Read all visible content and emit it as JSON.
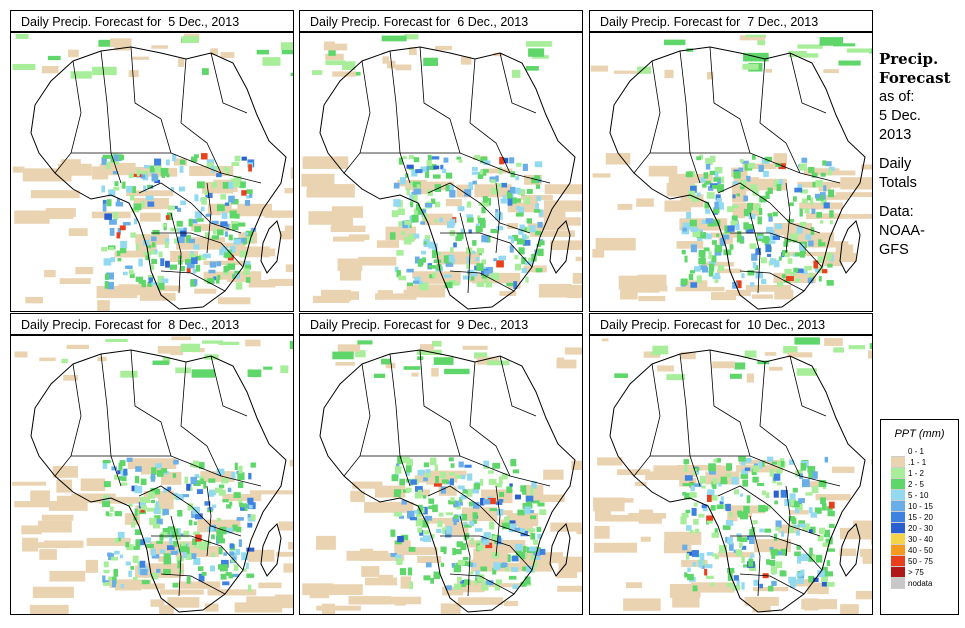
{
  "panels": [
    {
      "title": "Daily Precip. Forecast for  5 Dec., 2013"
    },
    {
      "title": "Daily Precip. Forecast for  6 Dec., 2013"
    },
    {
      "title": "Daily Precip. Forecast for  7 Dec., 2013"
    },
    {
      "title": "Daily Precip. Forecast for  8 Dec., 2013"
    },
    {
      "title": "Daily Precip. Forecast for  9 Dec., 2013"
    },
    {
      "title": "Daily Precip. Forecast for  10 Dec., 2013"
    }
  ],
  "side": {
    "title_line1": "Precip.",
    "title_line2": "Forecast",
    "asof_line1": "as of:",
    "asof_line2": "5 Dec.",
    "asof_line3": "2013",
    "daily_line1": "Daily",
    "daily_line2": "Totals",
    "data_line1": "Data:",
    "data_line2": "NOAA-",
    "data_line3": "GFS"
  },
  "legend": {
    "title": "PPT (mm)",
    "items": [
      {
        "label": "0 - 1",
        "color": "#ffffff"
      },
      {
        "label": ".1 - 1",
        "color": "#ead3b0"
      },
      {
        "label": "1 - 2",
        "color": "#a8ee9a"
      },
      {
        "label": "2 - 5",
        "color": "#5fd66a"
      },
      {
        "label": "5 - 10",
        "color": "#93d9f0"
      },
      {
        "label": "10 - 15",
        "color": "#6aaee8"
      },
      {
        "label": "15 - 20",
        "color": "#3d82e0"
      },
      {
        "label": "20 - 30",
        "color": "#2a5fcf"
      },
      {
        "label": "30 - 40",
        "color": "#f6d44a"
      },
      {
        "label": "40 - 50",
        "color": "#f59a1e"
      },
      {
        "label": "50 - 75",
        "color": "#e8401c"
      },
      {
        "label": "> 75",
        "color": "#b01818"
      },
      {
        "label": "nodata",
        "color": "#c8c8c8"
      }
    ]
  }
}
